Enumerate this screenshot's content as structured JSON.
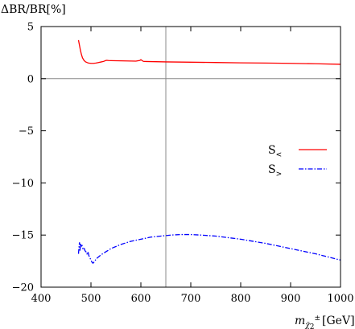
{
  "chart_data": {
    "type": "line",
    "ylabel": "ΔBR/BR[%]",
    "xlabel": {
      "base": "m",
      "sub": "χ̃",
      "sub2": "2",
      "sup": "±",
      "unit": "[GeV]"
    },
    "xlim": [
      400,
      1000
    ],
    "ylim": [
      -20,
      5
    ],
    "xticks": [
      400,
      500,
      600,
      700,
      800,
      900,
      1000
    ],
    "yticks": [
      5,
      0,
      -5,
      -10,
      -15,
      -20
    ],
    "ytick_labels": [
      "5",
      "0",
      "−5",
      "−10",
      "−15",
      "−20"
    ],
    "grid": false,
    "reference_lines": {
      "horizontal_y": 0,
      "vertical_x": 650
    },
    "legend": {
      "placement": "right"
    },
    "series": [
      {
        "name": "S<",
        "label_base": "S",
        "label_sub": "<",
        "color": "#ff0000",
        "style": "solid",
        "x": [
          475,
          477,
          479,
          481,
          483,
          486,
          489,
          492,
          495,
          500,
          505,
          510,
          515,
          520,
          525,
          530,
          532,
          535,
          540,
          550,
          560,
          570,
          580,
          590,
          598,
          600,
          602,
          605,
          610,
          620,
          650,
          700,
          750,
          800,
          850,
          900,
          950,
          1000
        ],
        "y": [
          3.7,
          3.2,
          2.7,
          2.3,
          2.0,
          1.75,
          1.62,
          1.55,
          1.5,
          1.47,
          1.47,
          1.5,
          1.55,
          1.6,
          1.65,
          1.75,
          1.76,
          1.74,
          1.73,
          1.72,
          1.71,
          1.7,
          1.69,
          1.68,
          1.75,
          1.82,
          1.75,
          1.66,
          1.65,
          1.64,
          1.61,
          1.58,
          1.55,
          1.52,
          1.5,
          1.47,
          1.43,
          1.38
        ]
      },
      {
        "name": "S>",
        "label_base": "S",
        "label_sub": ">",
        "color": "#0000ff",
        "style": "dashdot",
        "x": [
          475,
          476,
          477,
          478,
          479,
          480,
          482,
          484,
          486,
          488,
          490,
          492,
          494,
          496,
          498,
          500,
          502,
          504,
          506,
          508,
          510,
          520,
          540,
          560,
          580,
          600,
          620,
          640,
          660,
          680,
          700,
          720,
          750,
          800,
          850,
          900,
          950,
          1000
        ],
        "y": [
          -16.8,
          -16.2,
          -15.7,
          -16.5,
          -15.8,
          -16.1,
          -16.0,
          -16.3,
          -16.2,
          -16.5,
          -16.6,
          -16.8,
          -16.6,
          -17.0,
          -17.2,
          -17.4,
          -17.6,
          -17.7,
          -17.6,
          -17.5,
          -17.3,
          -16.9,
          -16.3,
          -15.9,
          -15.6,
          -15.4,
          -15.2,
          -15.1,
          -15.0,
          -14.95,
          -14.95,
          -15.0,
          -15.1,
          -15.4,
          -15.8,
          -16.3,
          -16.8,
          -17.4
        ]
      }
    ]
  }
}
